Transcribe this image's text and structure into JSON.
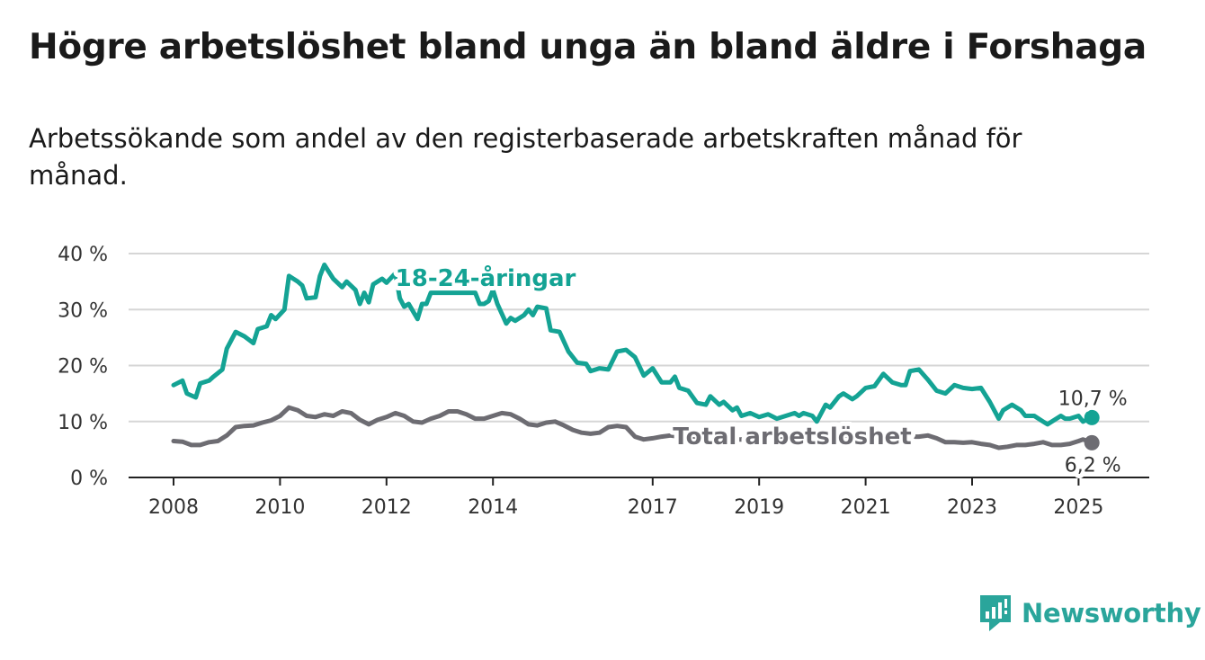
{
  "title": "Högre arbetslöshet bland unga än bland äldre i Forshaga",
  "subtitle": "Arbetssökande som andel av den registerbaserade arbetskraften månad för månad.",
  "brand": {
    "name": "Newsworthy",
    "color": "#2aa59b",
    "icon": "newsworthy-logo-icon"
  },
  "chart_data": {
    "type": "line",
    "x_ticks": [
      "2008",
      "2010",
      "2012",
      "2014",
      "2017",
      "2019",
      "2021",
      "2023",
      "2025"
    ],
    "y_ticks": [
      "0 %",
      "10 %",
      "20 %",
      "30 %",
      "40 %"
    ],
    "ylim": [
      0,
      40
    ],
    "xlim": [
      "2008-01",
      "2025-04"
    ],
    "grid": true,
    "series": [
      {
        "name": "18-24-åringar",
        "color": "#14a394",
        "end_label": "10,7 %",
        "points": [
          [
            "2008-01",
            16.5
          ],
          [
            "2008-03",
            17.3
          ],
          [
            "2008-04",
            15.0
          ],
          [
            "2008-06",
            14.3
          ],
          [
            "2008-07",
            16.8
          ],
          [
            "2008-09",
            17.3
          ],
          [
            "2008-10",
            18.0
          ],
          [
            "2008-12",
            19.3
          ],
          [
            "2009-01",
            23.0
          ],
          [
            "2009-03",
            26.0
          ],
          [
            "2009-05",
            25.2
          ],
          [
            "2009-07",
            24.0
          ],
          [
            "2009-08",
            26.5
          ],
          [
            "2009-10",
            27.0
          ],
          [
            "2009-11",
            29.0
          ],
          [
            "2009-12",
            28.3
          ],
          [
            "2010-02",
            30.0
          ],
          [
            "2010-03",
            36.0
          ],
          [
            "2010-05",
            35.0
          ],
          [
            "2010-06",
            34.3
          ],
          [
            "2010-07",
            32.0
          ],
          [
            "2010-09",
            32.2
          ],
          [
            "2010-10",
            36.0
          ],
          [
            "2010-11",
            38.0
          ],
          [
            "2011-01",
            35.5
          ],
          [
            "2011-03",
            34.0
          ],
          [
            "2011-04",
            35.0
          ],
          [
            "2011-06",
            33.5
          ],
          [
            "2011-07",
            31.0
          ],
          [
            "2011-08",
            33.0
          ],
          [
            "2011-09",
            31.3
          ],
          [
            "2011-10",
            34.5
          ],
          [
            "2011-12",
            35.5
          ],
          [
            "2012-01",
            34.8
          ],
          [
            "2012-03",
            36.5
          ],
          [
            "2012-04",
            32.0
          ],
          [
            "2012-05",
            30.5
          ],
          [
            "2012-06",
            31.0
          ],
          [
            "2012-08",
            28.3
          ],
          [
            "2012-09",
            31.0
          ],
          [
            "2012-10",
            31.0
          ],
          [
            "2012-11",
            33.0
          ],
          [
            "2013-09",
            33.0
          ],
          [
            "2013-10",
            31.0
          ],
          [
            "2013-11",
            31.0
          ],
          [
            "2013-12",
            31.5
          ],
          [
            "2014-01",
            33.5
          ],
          [
            "2014-02",
            31.0
          ],
          [
            "2014-04",
            27.5
          ],
          [
            "2014-05",
            28.5
          ],
          [
            "2014-06",
            28.0
          ],
          [
            "2014-08",
            29.0
          ],
          [
            "2014-09",
            30.0
          ],
          [
            "2014-10",
            29.0
          ],
          [
            "2014-11",
            30.5
          ],
          [
            "2015-01",
            30.2
          ],
          [
            "2015-02",
            26.3
          ],
          [
            "2015-04",
            26.0
          ],
          [
            "2015-06",
            22.5
          ],
          [
            "2015-08",
            20.5
          ],
          [
            "2015-10",
            20.3
          ],
          [
            "2015-11",
            19.0
          ],
          [
            "2016-01",
            19.5
          ],
          [
            "2016-03",
            19.3
          ],
          [
            "2016-05",
            22.5
          ],
          [
            "2016-07",
            22.8
          ],
          [
            "2016-09",
            21.5
          ],
          [
            "2016-11",
            18.2
          ],
          [
            "2017-01",
            19.5
          ],
          [
            "2017-03",
            17.0
          ],
          [
            "2017-05",
            17.0
          ],
          [
            "2017-06",
            18.0
          ],
          [
            "2017-07",
            16.0
          ],
          [
            "2017-09",
            15.5
          ],
          [
            "2017-11",
            13.3
          ],
          [
            "2018-01",
            13.0
          ],
          [
            "2018-02",
            14.5
          ],
          [
            "2018-04",
            13.0
          ],
          [
            "2018-05",
            13.5
          ],
          [
            "2018-07",
            12.0
          ],
          [
            "2018-08",
            12.5
          ],
          [
            "2018-09",
            11.0
          ],
          [
            "2018-11",
            11.5
          ],
          [
            "2019-01",
            10.8
          ],
          [
            "2019-03",
            11.3
          ],
          [
            "2019-05",
            10.5
          ],
          [
            "2019-07",
            11.0
          ],
          [
            "2019-09",
            11.5
          ],
          [
            "2019-10",
            11.0
          ],
          [
            "2019-11",
            11.5
          ],
          [
            "2020-01",
            11.0
          ],
          [
            "2020-02",
            10.0
          ],
          [
            "2020-04",
            13.0
          ],
          [
            "2020-05",
            12.5
          ],
          [
            "2020-07",
            14.5
          ],
          [
            "2020-08",
            15.0
          ],
          [
            "2020-10",
            14.0
          ],
          [
            "2020-11",
            14.5
          ],
          [
            "2021-01",
            16.0
          ],
          [
            "2021-03",
            16.3
          ],
          [
            "2021-05",
            18.5
          ],
          [
            "2021-07",
            17.0
          ],
          [
            "2021-09",
            16.5
          ],
          [
            "2021-10",
            16.5
          ],
          [
            "2021-11",
            19.0
          ],
          [
            "2022-01",
            19.3
          ],
          [
            "2022-03",
            17.5
          ],
          [
            "2022-05",
            15.5
          ],
          [
            "2022-07",
            15.0
          ],
          [
            "2022-09",
            16.5
          ],
          [
            "2022-11",
            16.0
          ],
          [
            "2023-01",
            15.8
          ],
          [
            "2023-03",
            16.0
          ],
          [
            "2023-05",
            13.5
          ],
          [
            "2023-07",
            10.5
          ],
          [
            "2023-08",
            12.0
          ],
          [
            "2023-10",
            13.0
          ],
          [
            "2023-12",
            12.0
          ],
          [
            "2024-01",
            11.0
          ],
          [
            "2024-03",
            11.0
          ],
          [
            "2024-05",
            10.0
          ],
          [
            "2024-06",
            9.5
          ],
          [
            "2024-07",
            10.0
          ],
          [
            "2024-09",
            11.0
          ],
          [
            "2024-10",
            10.5
          ],
          [
            "2024-11",
            10.5
          ],
          [
            "2025-01",
            11.0
          ],
          [
            "2025-02",
            10.0
          ],
          [
            "2025-04",
            10.7
          ]
        ]
      },
      {
        "name": "Total arbetslöshet",
        "color": "#6d6c72",
        "end_label": "6,2 %",
        "points": [
          [
            "2008-01",
            6.5
          ],
          [
            "2008-03",
            6.4
          ],
          [
            "2008-05",
            5.8
          ],
          [
            "2008-07",
            5.8
          ],
          [
            "2008-09",
            6.3
          ],
          [
            "2008-11",
            6.5
          ],
          [
            "2009-01",
            7.5
          ],
          [
            "2009-03",
            9.0
          ],
          [
            "2009-05",
            9.2
          ],
          [
            "2009-07",
            9.3
          ],
          [
            "2009-09",
            9.8
          ],
          [
            "2009-11",
            10.2
          ],
          [
            "2010-01",
            11.0
          ],
          [
            "2010-03",
            12.5
          ],
          [
            "2010-05",
            12.0
          ],
          [
            "2010-07",
            11.0
          ],
          [
            "2010-09",
            10.8
          ],
          [
            "2010-11",
            11.3
          ],
          [
            "2011-01",
            11.0
          ],
          [
            "2011-03",
            11.8
          ],
          [
            "2011-05",
            11.5
          ],
          [
            "2011-07",
            10.3
          ],
          [
            "2011-09",
            9.5
          ],
          [
            "2011-11",
            10.3
          ],
          [
            "2012-01",
            10.8
          ],
          [
            "2012-03",
            11.5
          ],
          [
            "2012-05",
            11.0
          ],
          [
            "2012-07",
            10.0
          ],
          [
            "2012-09",
            9.8
          ],
          [
            "2012-11",
            10.5
          ],
          [
            "2013-01",
            11.0
          ],
          [
            "2013-03",
            11.8
          ],
          [
            "2013-05",
            11.8
          ],
          [
            "2013-07",
            11.3
          ],
          [
            "2013-09",
            10.5
          ],
          [
            "2013-11",
            10.5
          ],
          [
            "2014-01",
            11.0
          ],
          [
            "2014-03",
            11.5
          ],
          [
            "2014-05",
            11.3
          ],
          [
            "2014-07",
            10.5
          ],
          [
            "2014-09",
            9.5
          ],
          [
            "2014-11",
            9.3
          ],
          [
            "2015-01",
            9.8
          ],
          [
            "2015-03",
            10.0
          ],
          [
            "2015-05",
            9.3
          ],
          [
            "2015-07",
            8.5
          ],
          [
            "2015-09",
            8.0
          ],
          [
            "2015-11",
            7.8
          ],
          [
            "2016-01",
            8.0
          ],
          [
            "2016-03",
            9.0
          ],
          [
            "2016-05",
            9.2
          ],
          [
            "2016-07",
            9.0
          ],
          [
            "2016-09",
            7.3
          ],
          [
            "2016-11",
            6.8
          ],
          [
            "2017-01",
            7.0
          ],
          [
            "2017-03",
            7.3
          ],
          [
            "2017-05",
            7.5
          ],
          [
            "2017-07",
            7.3
          ],
          [
            "2017-09",
            7.2
          ],
          [
            "2017-11",
            7.0
          ],
          [
            "2018-01",
            7.0
          ],
          [
            "2018-03",
            7.2
          ],
          [
            "2018-05",
            7.0
          ],
          [
            "2018-07",
            6.8
          ],
          [
            "2018-09",
            6.8
          ],
          [
            "2018-11",
            6.8
          ],
          [
            "2019-01",
            6.8
          ],
          [
            "2019-03",
            7.0
          ],
          [
            "2019-05",
            7.2
          ],
          [
            "2019-07",
            7.2
          ],
          [
            "2019-09",
            7.3
          ],
          [
            "2019-11",
            7.3
          ],
          [
            "2020-01",
            7.5
          ],
          [
            "2020-03",
            7.8
          ],
          [
            "2020-05",
            8.0
          ],
          [
            "2020-07",
            7.8
          ],
          [
            "2020-09",
            7.5
          ],
          [
            "2020-11",
            7.5
          ],
          [
            "2021-01",
            7.8
          ],
          [
            "2021-03",
            8.0
          ],
          [
            "2021-05",
            7.8
          ],
          [
            "2021-07",
            7.5
          ],
          [
            "2021-09",
            7.3
          ],
          [
            "2021-11",
            7.3
          ],
          [
            "2022-01",
            7.3
          ],
          [
            "2022-03",
            7.5
          ],
          [
            "2022-05",
            7.0
          ],
          [
            "2022-07",
            6.3
          ],
          [
            "2022-09",
            6.3
          ],
          [
            "2022-11",
            6.2
          ],
          [
            "2023-01",
            6.3
          ],
          [
            "2023-03",
            6.0
          ],
          [
            "2023-05",
            5.8
          ],
          [
            "2023-07",
            5.3
          ],
          [
            "2023-09",
            5.5
          ],
          [
            "2023-11",
            5.8
          ],
          [
            "2024-01",
            5.8
          ],
          [
            "2024-03",
            6.0
          ],
          [
            "2024-05",
            6.3
          ],
          [
            "2024-07",
            5.8
          ],
          [
            "2024-09",
            5.8
          ],
          [
            "2024-11",
            6.0
          ],
          [
            "2025-01",
            6.5
          ],
          [
            "2025-02",
            6.8
          ],
          [
            "2025-04",
            6.2
          ]
        ]
      }
    ]
  }
}
